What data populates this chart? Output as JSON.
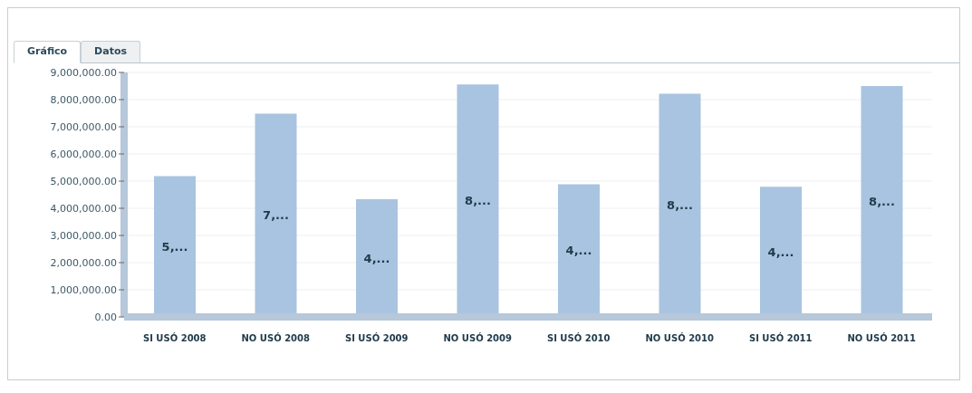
{
  "chart_data": {
    "type": "bar",
    "annotations": [
      "Gráfico",
      "Datos"
    ],
    "categories": [
      "SI USÓ 2008",
      "NO USÓ 2008",
      "SI USÓ 2009",
      "NO USÓ 2009",
      "SI USÓ 2010",
      "NO USÓ 2010",
      "SI USÓ 2011",
      "NO USÓ 2011"
    ],
    "values": [
      5180000,
      7480000,
      4330000,
      8560000,
      4880000,
      8220000,
      4790000,
      8500000
    ],
    "value_labels": [
      "5,...",
      "7,...",
      "4,...",
      "8,...",
      "4,...",
      "8,...",
      "4,...",
      "8,..."
    ],
    "color": "#a9c4e0",
    "ylim": [
      0,
      9000000
    ],
    "yticks": [
      {
        "value": 0,
        "label": "0.00"
      },
      {
        "value": 1000000,
        "label": "1,000,000.00"
      },
      {
        "value": 2000000,
        "label": "2,000,000.00"
      },
      {
        "value": 3000000,
        "label": "3,000,000.00"
      },
      {
        "value": 4000000,
        "label": "4,000,000.00"
      },
      {
        "value": 5000000,
        "label": "5,000,000.00"
      },
      {
        "value": 6000000,
        "label": "6,000,000.00"
      },
      {
        "value": 7000000,
        "label": "7,000,000.00"
      },
      {
        "value": 8000000,
        "label": "8,000,000.00"
      },
      {
        "value": 9000000,
        "label": "9,000,000.00"
      }
    ],
    "grid": "y",
    "legend": false
  }
}
